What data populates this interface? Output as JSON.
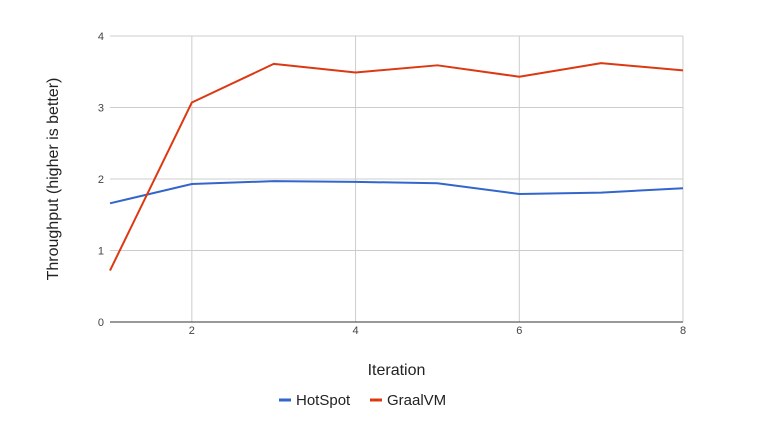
{
  "chart_data": {
    "type": "line",
    "xlabel": "Iteration",
    "ylabel": "Throughput (higher is better)",
    "xlim": [
      1,
      8
    ],
    "ylim": [
      0,
      4
    ],
    "x_ticks": [
      2,
      4,
      6,
      8
    ],
    "y_ticks": [
      0,
      1,
      2,
      3,
      4
    ],
    "x": [
      1,
      2,
      3,
      4,
      5,
      6,
      7,
      8
    ],
    "grid": true,
    "legend_position": "bottom",
    "series": [
      {
        "name": "HotSpot",
        "color": "#3366cc",
        "values": [
          1.66,
          1.93,
          1.97,
          1.96,
          1.94,
          1.79,
          1.81,
          1.87
        ]
      },
      {
        "name": "GraalVM",
        "color": "#dc3912",
        "values": [
          0.72,
          3.07,
          3.61,
          3.49,
          3.59,
          3.43,
          3.62,
          3.52
        ]
      }
    ]
  }
}
